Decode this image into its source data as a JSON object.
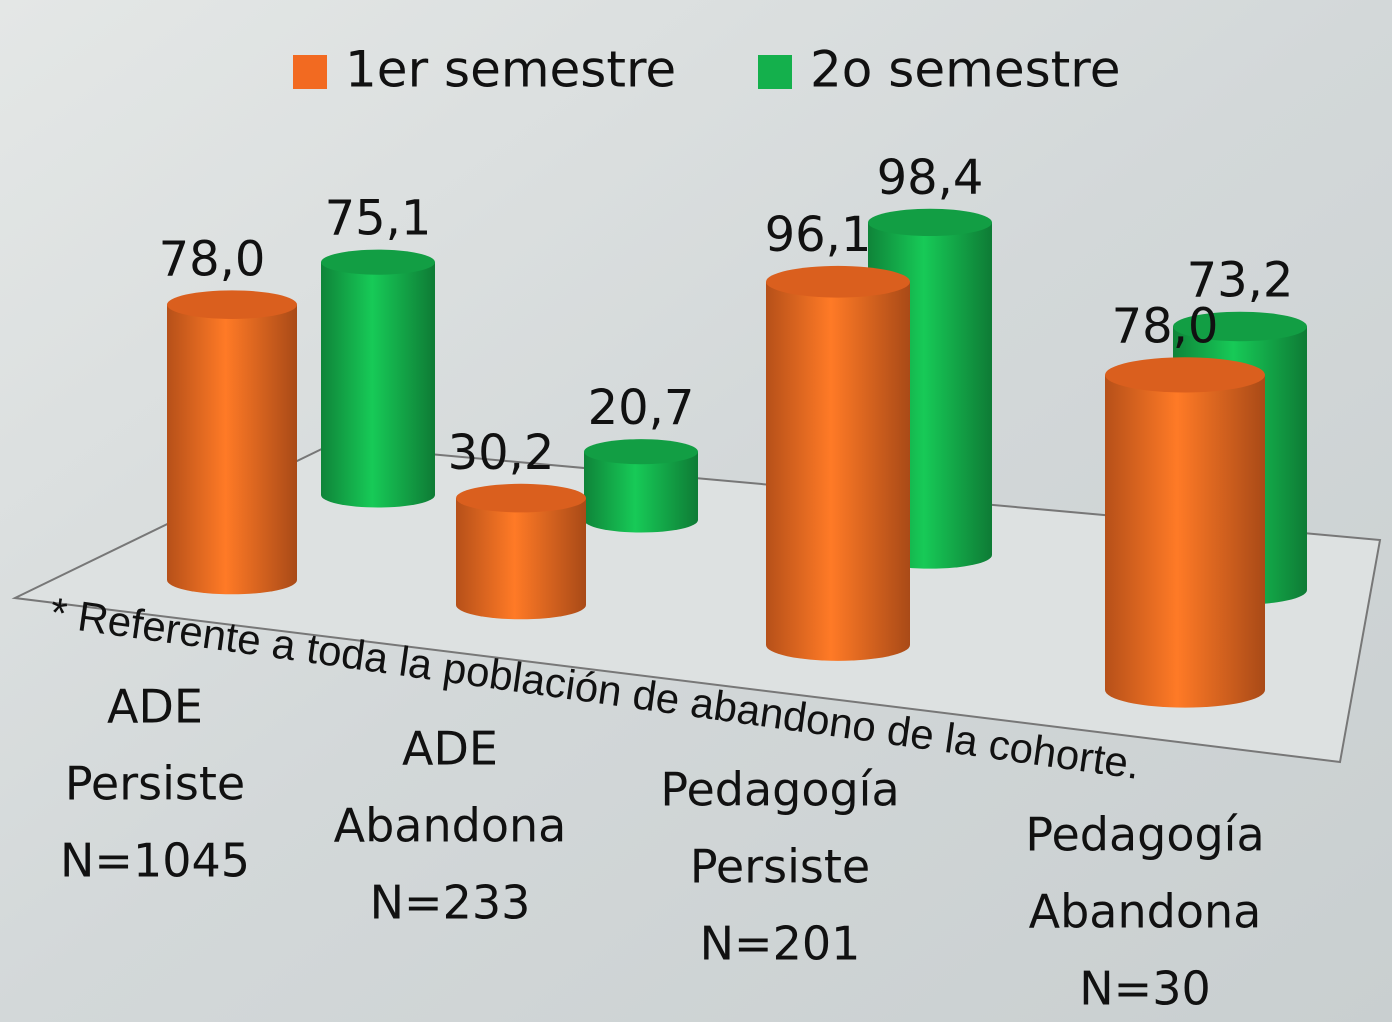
{
  "chart_data": {
    "type": "bar3d",
    "categories": [
      [
        "ADE",
        "Persiste",
        "N=1045"
      ],
      [
        "ADE",
        "Abandona",
        "N=233"
      ],
      [
        "Pedagogía",
        "Persiste",
        "N=201"
      ],
      [
        "Pedagogía",
        "Abandona",
        "N=30"
      ]
    ],
    "series": [
      {
        "name": "1er semestre",
        "color": "#f26a21",
        "values": [
          78.0,
          30.2,
          96.1,
          78.0
        ],
        "value_labels": [
          "78,0",
          "30,2",
          "96,1",
          "78,0"
        ]
      },
      {
        "name": "2o semestre",
        "color": "#14b04c",
        "values": [
          75.1,
          20.7,
          98.4,
          73.2
        ],
        "value_labels": [
          "75,1",
          "20,7",
          "98,4",
          "73,2"
        ]
      }
    ],
    "annotation": "* Referente a toda la población de abandono de la cohorte.",
    "legend": "top"
  }
}
